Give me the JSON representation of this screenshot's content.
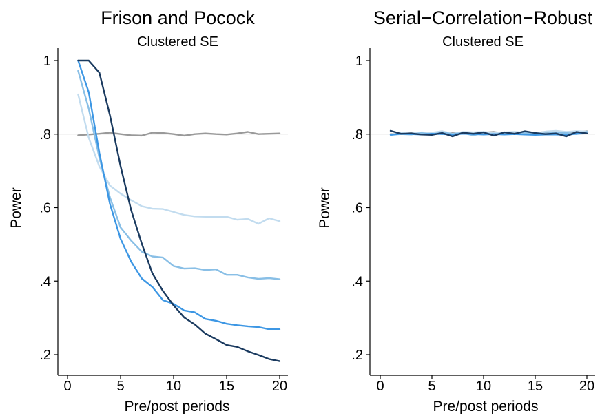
{
  "chart_data": [
    {
      "type": "line",
      "title": "Frison and Pocock",
      "subtitle": "Clustered SE",
      "xlabel": "Pre/post periods",
      "ylabel": "Power",
      "xlim": [
        0,
        20
      ],
      "ylim": [
        0.2,
        1.0
      ],
      "xticks": [
        0,
        5,
        10,
        15,
        20
      ],
      "xtick_labels": [
        "0",
        "5",
        "10",
        "15",
        "20"
      ],
      "yticks": [
        0.2,
        0.4,
        0.6,
        0.8,
        1.0
      ],
      "ytick_labels": [
        ".2",
        ".4",
        ".6",
        ".8",
        "1"
      ],
      "reference_line": 0.8,
      "x": [
        1,
        2,
        3,
        4,
        5,
        6,
        7,
        8,
        9,
        10,
        11,
        12,
        13,
        14,
        15,
        16,
        17,
        18,
        19,
        20
      ],
      "series": [
        {
          "color": "#999999",
          "values": [
            0.797,
            0.799,
            0.801,
            0.804,
            0.8,
            0.797,
            0.796,
            0.804,
            0.803,
            0.8,
            0.796,
            0.8,
            0.802,
            0.8,
            0.799,
            0.802,
            0.806,
            0.8,
            0.801,
            0.802
          ]
        },
        {
          "color": "#c2dcef",
          "values": [
            0.908,
            0.79,
            0.712,
            0.66,
            0.638,
            0.62,
            0.604,
            0.597,
            0.596,
            0.588,
            0.58,
            0.576,
            0.575,
            0.575,
            0.575,
            0.567,
            0.569,
            0.556,
            0.571,
            0.563
          ]
        },
        {
          "color": "#89bfe6",
          "values": [
            0.972,
            0.869,
            0.736,
            0.628,
            0.546,
            0.51,
            0.48,
            0.467,
            0.464,
            0.441,
            0.434,
            0.435,
            0.43,
            0.432,
            0.417,
            0.417,
            0.41,
            0.406,
            0.408,
            0.405
          ]
        },
        {
          "color": "#3d97e4",
          "values": [
            1.0,
            0.914,
            0.749,
            0.61,
            0.515,
            0.453,
            0.407,
            0.384,
            0.348,
            0.338,
            0.32,
            0.315,
            0.297,
            0.292,
            0.284,
            0.28,
            0.277,
            0.275,
            0.269,
            0.269
          ]
        },
        {
          "color": "#1a3a5f",
          "values": [
            1.0,
            1.0,
            0.967,
            0.851,
            0.713,
            0.593,
            0.502,
            0.421,
            0.373,
            0.334,
            0.301,
            0.282,
            0.257,
            0.242,
            0.226,
            0.221,
            0.209,
            0.199,
            0.188,
            0.182
          ]
        }
      ]
    },
    {
      "type": "line",
      "title": "Serial−Correlation−Robust",
      "subtitle": "Clustered SE",
      "xlabel": "Pre/post periods",
      "ylabel": "Power",
      "xlim": [
        0,
        20
      ],
      "ylim": [
        0.2,
        1.0
      ],
      "xticks": [
        0,
        5,
        10,
        15,
        20
      ],
      "xtick_labels": [
        "0",
        "5",
        "10",
        "15",
        "20"
      ],
      "yticks": [
        0.2,
        0.4,
        0.6,
        0.8,
        1.0
      ],
      "ytick_labels": [
        ".2",
        ".4",
        ".6",
        ".8",
        "1"
      ],
      "reference_line": 0.8,
      "x": [
        1,
        2,
        3,
        4,
        5,
        6,
        7,
        8,
        9,
        10,
        11,
        12,
        13,
        14,
        15,
        16,
        17,
        18,
        19,
        20
      ],
      "series": [
        {
          "color": "#999999",
          "values": [
            0.8,
            0.801,
            0.803,
            0.802,
            0.803,
            0.806,
            0.803,
            0.804,
            0.801,
            0.804,
            0.806,
            0.802,
            0.803,
            0.805,
            0.803,
            0.806,
            0.808,
            0.805,
            0.805,
            0.808
          ]
        },
        {
          "color": "#c2dcef",
          "values": [
            0.799,
            0.803,
            0.802,
            0.805,
            0.804,
            0.808,
            0.801,
            0.806,
            0.805,
            0.806,
            0.803,
            0.805,
            0.806,
            0.804,
            0.802,
            0.807,
            0.809,
            0.806,
            0.808,
            0.807
          ]
        },
        {
          "color": "#89bfe6",
          "values": [
            0.798,
            0.8,
            0.799,
            0.803,
            0.799,
            0.805,
            0.8,
            0.803,
            0.797,
            0.803,
            0.799,
            0.803,
            0.801,
            0.803,
            0.8,
            0.802,
            0.804,
            0.803,
            0.8,
            0.806
          ]
        },
        {
          "color": "#3d97e4",
          "values": [
            0.798,
            0.801,
            0.8,
            0.799,
            0.801,
            0.8,
            0.799,
            0.801,
            0.8,
            0.799,
            0.8,
            0.799,
            0.8,
            0.799,
            0.798,
            0.799,
            0.799,
            0.798,
            0.801,
            0.802
          ]
        },
        {
          "color": "#1a3a5f",
          "values": [
            0.809,
            0.801,
            0.802,
            0.799,
            0.798,
            0.803,
            0.794,
            0.804,
            0.801,
            0.805,
            0.796,
            0.805,
            0.801,
            0.808,
            0.803,
            0.8,
            0.802,
            0.794,
            0.806,
            0.802
          ]
        }
      ]
    }
  ]
}
